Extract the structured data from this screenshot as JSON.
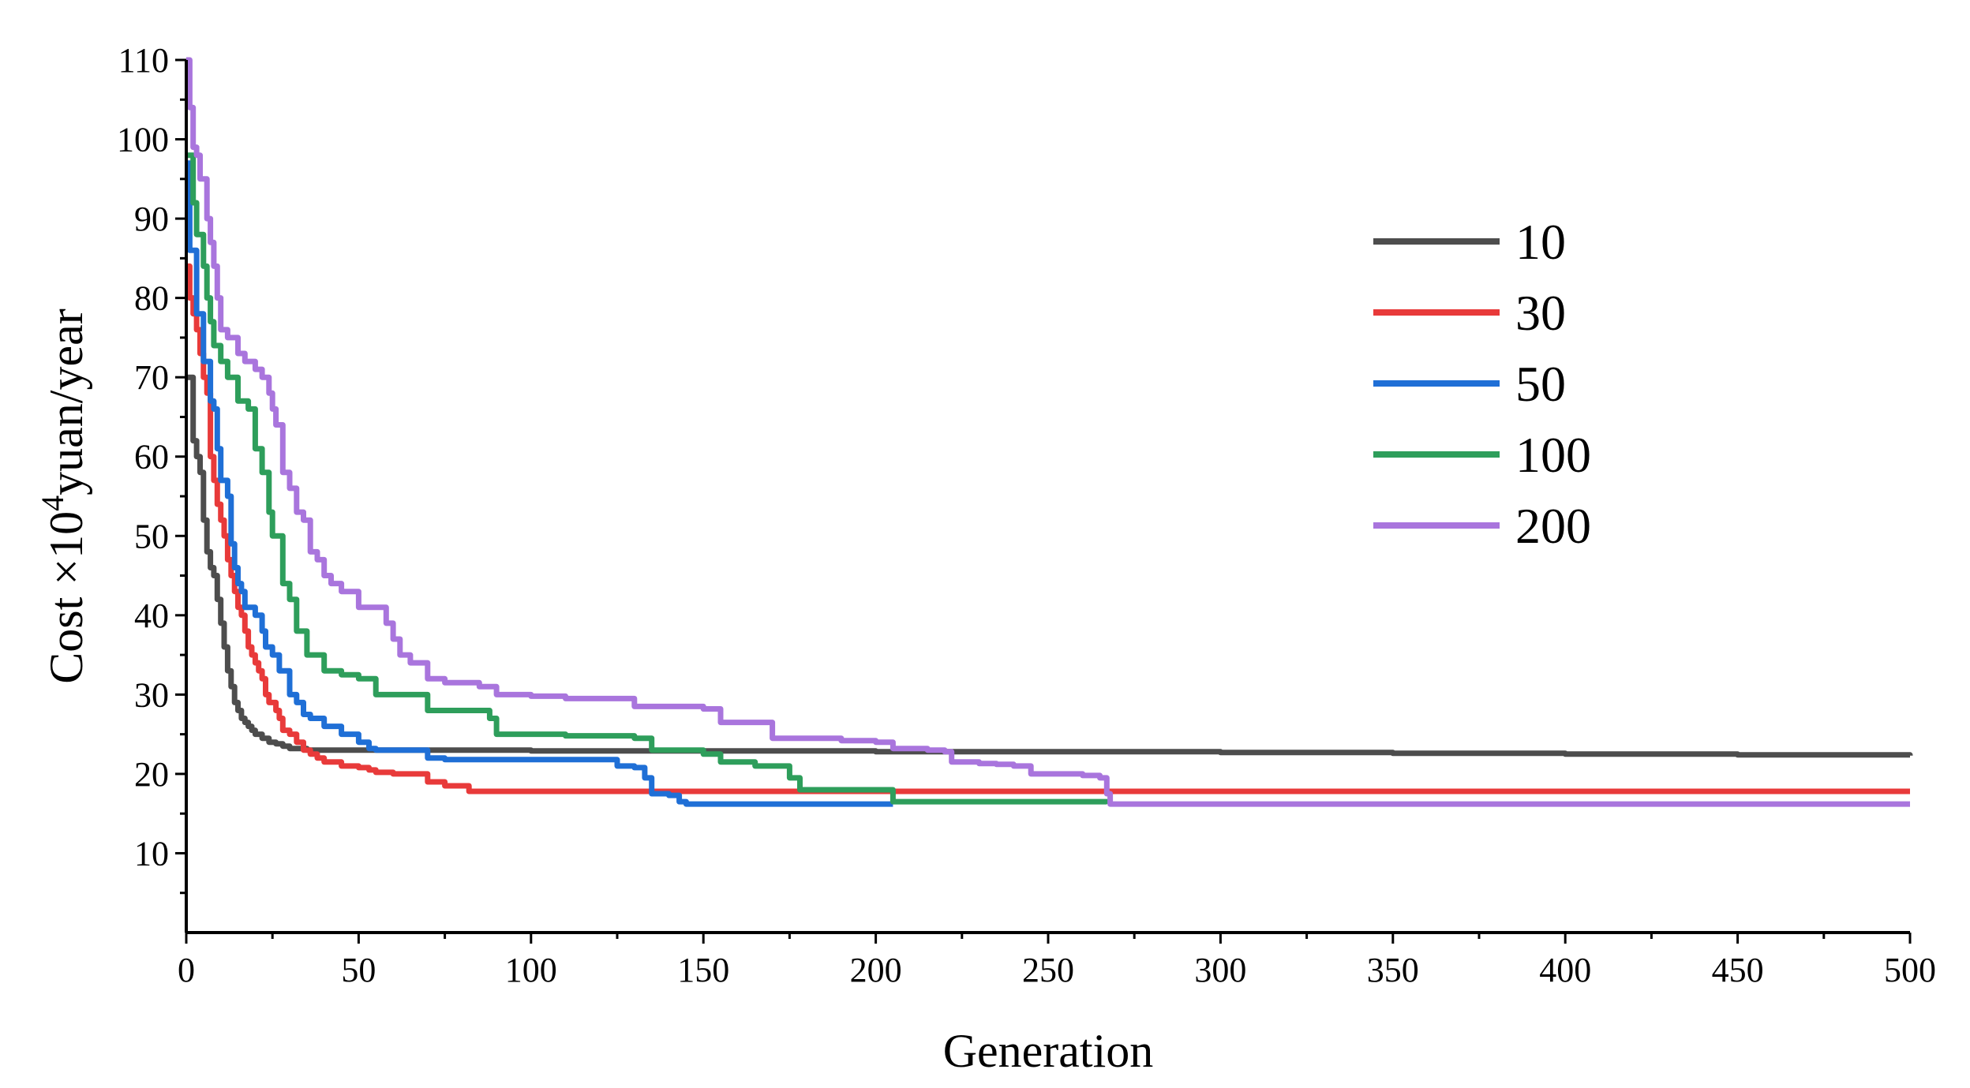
{
  "chart_data": {
    "type": "line",
    "title": "",
    "xlabel": "Generation",
    "ylabel": {
      "prefix": "Cost ×10",
      "superscript": "4",
      "suffix": "yuan/year"
    },
    "xlim": [
      0,
      500
    ],
    "ylim": [
      0,
      110
    ],
    "xticks": [
      0,
      50,
      100,
      150,
      200,
      250,
      300,
      350,
      400,
      450,
      500
    ],
    "yticks": [
      10,
      20,
      30,
      40,
      50,
      60,
      70,
      80,
      90,
      100,
      110
    ],
    "grid": false,
    "legend_position": "upper-right",
    "series": [
      {
        "name": "10",
        "color": "#4d4d4d",
        "x": [
          0,
          2,
          3,
          4,
          5,
          6,
          7,
          8,
          9,
          10,
          11,
          12,
          13,
          14,
          15,
          16,
          17,
          18,
          19,
          20,
          22,
          24,
          26,
          28,
          30,
          35,
          40,
          50,
          60,
          80,
          100,
          150,
          200,
          250,
          300,
          350,
          400,
          450,
          500
        ],
        "y": [
          70,
          62,
          60,
          58,
          52,
          48,
          46,
          45,
          42,
          39,
          36,
          33,
          31,
          29,
          28,
          27,
          26.5,
          26,
          25.5,
          25,
          24.5,
          24,
          23.8,
          23.5,
          23.2,
          23,
          23,
          23,
          23,
          23,
          22.9,
          22.9,
          22.8,
          22.8,
          22.7,
          22.6,
          22.5,
          22.4,
          22.3
        ]
      },
      {
        "name": "30",
        "color": "#e83a3a",
        "x": [
          0,
          1,
          2,
          3,
          4,
          5,
          6,
          7,
          8,
          9,
          10,
          11,
          12,
          13,
          14,
          15,
          16,
          17,
          18,
          19,
          20,
          21,
          22,
          23,
          24,
          25,
          26,
          27,
          28,
          30,
          32,
          34,
          36,
          38,
          40,
          45,
          50,
          53,
          55,
          60,
          68,
          70,
          75,
          80,
          82,
          100,
          150,
          200,
          250,
          300,
          350,
          400,
          450,
          500
        ],
        "y": [
          84,
          80,
          78,
          76,
          73,
          70,
          68,
          60,
          57,
          54,
          52,
          50,
          47,
          45,
          43,
          41,
          40,
          38,
          36,
          35,
          34,
          33,
          32,
          30,
          29,
          29,
          28,
          27,
          25.5,
          25,
          24,
          23,
          22.5,
          22,
          21.5,
          21,
          20.8,
          20.5,
          20.2,
          20,
          20,
          19,
          18.5,
          18.5,
          17.8,
          17.8,
          17.8,
          17.8,
          17.8,
          17.8,
          17.8,
          17.8,
          17.8,
          17.8
        ]
      },
      {
        "name": "50",
        "color": "#1f6fd6",
        "x": [
          0,
          1,
          3,
          5,
          7,
          8,
          9,
          10,
          12,
          13,
          14,
          15,
          16,
          17,
          18,
          20,
          22,
          23,
          25,
          27,
          30,
          32,
          34,
          36,
          40,
          45,
          50,
          53,
          55,
          60,
          68,
          70,
          75,
          80,
          90,
          100,
          118,
          125,
          130,
          133,
          135,
          136,
          140,
          143,
          145,
          150,
          200,
          205
        ],
        "y": [
          97,
          86,
          78,
          72,
          67,
          66,
          61,
          57,
          55,
          49,
          46,
          44,
          43,
          41,
          41,
          40,
          38,
          36,
          35,
          33,
          30,
          29,
          27.5,
          27,
          26,
          25,
          24,
          23.2,
          23,
          23,
          23,
          22,
          21.8,
          21.8,
          21.8,
          21.8,
          21.8,
          21,
          20.8,
          19.5,
          17.5,
          17.5,
          17.3,
          16.5,
          16.2,
          16.2,
          16.2,
          16.2
        ]
      },
      {
        "name": "100",
        "color": "#2e9e5b",
        "x": [
          0,
          2,
          3,
          5,
          6,
          7,
          8,
          10,
          12,
          15,
          17,
          18,
          20,
          22,
          24,
          25,
          28,
          30,
          32,
          35,
          40,
          45,
          50,
          55,
          60,
          70,
          80,
          88,
          90,
          100,
          110,
          130,
          135,
          150,
          155,
          165,
          175,
          178,
          180,
          205,
          267
        ],
        "y": [
          98,
          92,
          88,
          84,
          80,
          77,
          74,
          72,
          70,
          67,
          67,
          66,
          61,
          58,
          53,
          50,
          44,
          42,
          38,
          35,
          33,
          32.5,
          32,
          30,
          30,
          28,
          28,
          27,
          25,
          25,
          24.8,
          24.5,
          23,
          22.5,
          21.5,
          21,
          19.5,
          18,
          18,
          16.5,
          16.2
        ]
      },
      {
        "name": "200",
        "color": "#a975dd",
        "x": [
          0,
          1,
          2,
          3,
          4,
          6,
          7,
          8,
          9,
          10,
          12,
          15,
          17,
          20,
          22,
          24,
          25,
          26,
          28,
          30,
          32,
          34,
          36,
          38,
          40,
          42,
          45,
          50,
          55,
          58,
          60,
          62,
          65,
          70,
          75,
          85,
          90,
          100,
          110,
          125,
          130,
          150,
          155,
          165,
          170,
          190,
          200,
          205,
          215,
          220,
          222,
          230,
          235,
          240,
          245,
          260,
          265,
          267,
          268,
          500
        ],
        "y": [
          110,
          104,
          99,
          98,
          95,
          90,
          87,
          84,
          80,
          76,
          75,
          73,
          72,
          71,
          70,
          68,
          66,
          64,
          58,
          56,
          53,
          52,
          48,
          47,
          45,
          44,
          43,
          41,
          41,
          39,
          37,
          35,
          34,
          32,
          31.5,
          31,
          30,
          29.8,
          29.5,
          29.5,
          28.5,
          28.2,
          26.5,
          26.5,
          24.5,
          24.2,
          24,
          23.2,
          23,
          22.8,
          21.5,
          21.3,
          21.2,
          21,
          20,
          19.8,
          19.5,
          17.5,
          16.2,
          16.2
        ]
      }
    ]
  }
}
